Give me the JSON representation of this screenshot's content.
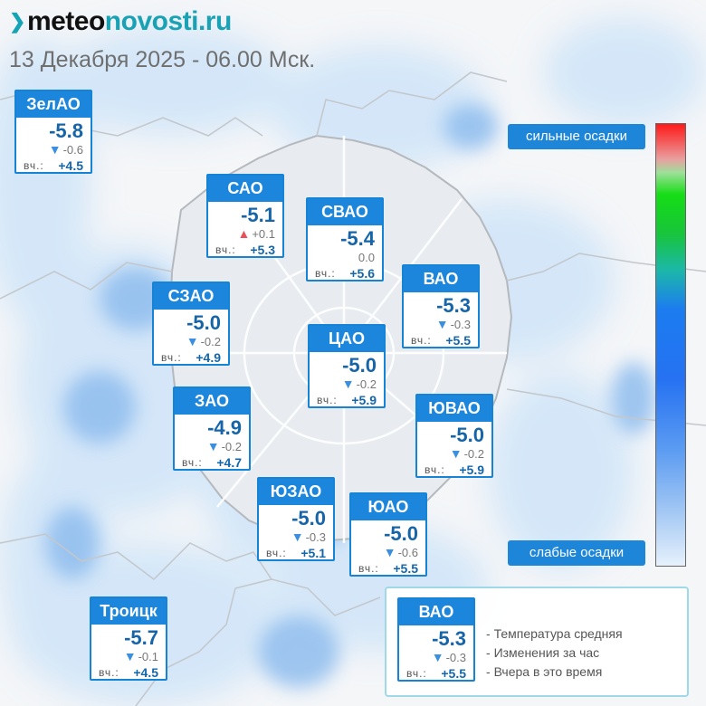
{
  "header": {
    "site_name_part1": "meteo",
    "site_name_part2": "novosti.ru",
    "date_line": "13 Декабря 2025 - 06.00 Мск."
  },
  "scale": {
    "top_label": "сильные осадки",
    "bottom_label": "слабые осадки"
  },
  "colors": {
    "card_border": "#1684d6",
    "card_header": "#1c86dc",
    "temperature_text": "#1665a8",
    "down_arrow": "#3a8fe0",
    "up_arrow": "#e8505a",
    "precip_light": "#cfe4f8",
    "precip_medium": "#7fb4ec"
  },
  "districts": [
    {
      "id": "zelao",
      "name": "ЗелАО",
      "temp": "-5.8",
      "trend": "down",
      "delta": "-0.6",
      "yest_label": "вч.:",
      "yest": "+4.5"
    },
    {
      "id": "sao",
      "name": "САО",
      "temp": "-5.1",
      "trend": "up",
      "delta": "+0.1",
      "yest_label": "вч.:",
      "yest": "+5.3"
    },
    {
      "id": "svao",
      "name": "СВАО",
      "temp": "-5.4",
      "trend": "none",
      "delta": "0.0",
      "yest_label": "вч.:",
      "yest": "+5.6"
    },
    {
      "id": "vao",
      "name": "ВАО",
      "temp": "-5.3",
      "trend": "down",
      "delta": "-0.3",
      "yest_label": "вч.:",
      "yest": "+5.5"
    },
    {
      "id": "szao",
      "name": "СЗАО",
      "temp": "-5.0",
      "trend": "down",
      "delta": "-0.2",
      "yest_label": "вч.:",
      "yest": "+4.9"
    },
    {
      "id": "cao",
      "name": "ЦАО",
      "temp": "-5.0",
      "trend": "down",
      "delta": "-0.2",
      "yest_label": "вч.:",
      "yest": "+5.9"
    },
    {
      "id": "zao",
      "name": "ЗАО",
      "temp": "-4.9",
      "trend": "down",
      "delta": "-0.2",
      "yest_label": "вч.:",
      "yest": "+4.7"
    },
    {
      "id": "yuvao",
      "name": "ЮВАО",
      "temp": "-5.0",
      "trend": "down",
      "delta": "-0.2",
      "yest_label": "вч.:",
      "yest": "+5.9"
    },
    {
      "id": "yuzao",
      "name": "ЮЗАО",
      "temp": "-5.0",
      "trend": "down",
      "delta": "-0.3",
      "yest_label": "вч.:",
      "yest": "+5.1"
    },
    {
      "id": "yuao",
      "name": "ЮАО",
      "temp": "-5.0",
      "trend": "down",
      "delta": "-0.6",
      "yest_label": "вч.:",
      "yest": "+5.5"
    },
    {
      "id": "troitsk",
      "name": "Троицк",
      "temp": "-5.7",
      "trend": "down",
      "delta": "-0.1",
      "yest_label": "вч.:",
      "yest": "+4.5"
    }
  ],
  "legend": {
    "example": {
      "name": "ВАО",
      "temp": "-5.3",
      "trend": "down",
      "delta": "-0.3",
      "yest_label": "вч.:",
      "yest": "+5.5"
    },
    "line1": "Температура средняя",
    "line2": "Изменения за час",
    "line3": "Вчера в это время"
  }
}
